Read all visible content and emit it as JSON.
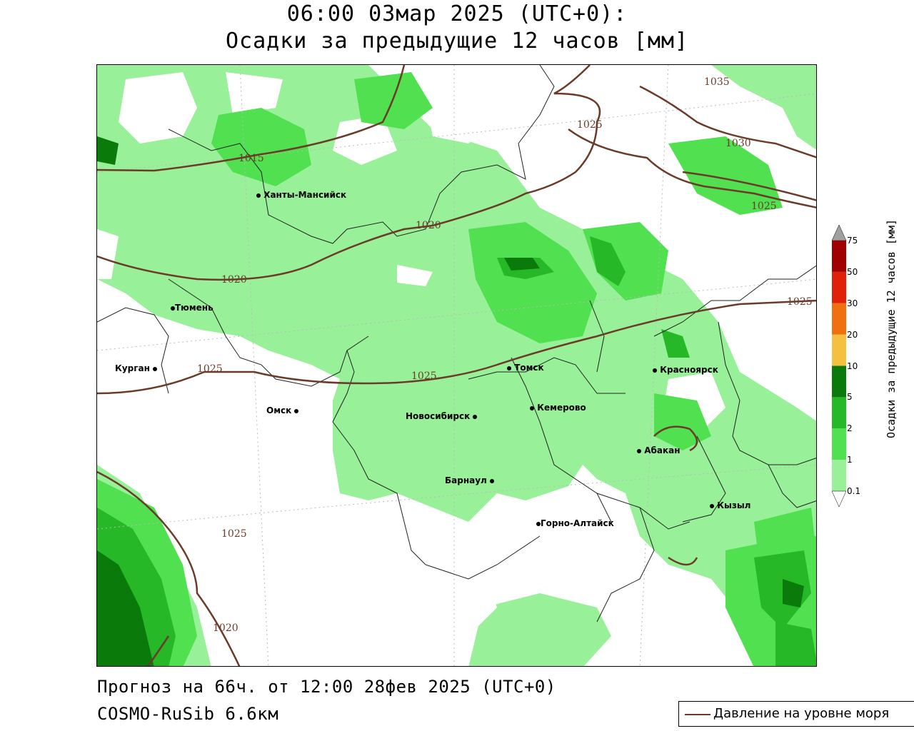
{
  "header": {
    "title_line1": "06:00 03мар 2025 (UTC+0):",
    "title_line2": "Осадки за предыдущие 12 часов [мм]"
  },
  "cities": [
    {
      "name": "Ханты-Мансийск"
    },
    {
      "name": "Тюмень"
    },
    {
      "name": "Курган"
    },
    {
      "name": "Омск"
    },
    {
      "name": "Новосибирск"
    },
    {
      "name": "Томск"
    },
    {
      "name": "Кемерово"
    },
    {
      "name": "Красноярск"
    },
    {
      "name": "Абакан"
    },
    {
      "name": "Барнаул"
    },
    {
      "name": "Горно-Алтайск"
    },
    {
      "name": "Кызыл"
    }
  ],
  "isobar_labels": [
    "1015",
    "1020",
    "1020",
    "1025",
    "1025",
    "1025",
    "1025",
    "1025",
    "1030",
    "1035",
    "1025",
    "1020"
  ],
  "colorbar": {
    "title": "Осадки за предыдущие 12 часов [мм]",
    "levels": [
      "0.1",
      "1",
      "2",
      "5",
      "10",
      "20",
      "30",
      "50",
      "75"
    ],
    "colors": [
      "#98f098",
      "#50e050",
      "#26b826",
      "#0a7a0a",
      "#f5c040",
      "#f07010",
      "#e02008",
      "#a00000",
      "#a0a0a0"
    ]
  },
  "footer": {
    "forecast": "Прогноз на 66ч. от 12:00 28фев 2025 (UTC+0)",
    "model": "COSMO-RuSib 6.6км"
  },
  "legend": {
    "pressure_label": "Давление на уровне моря",
    "pressure_color": "#6b3b2a"
  }
}
